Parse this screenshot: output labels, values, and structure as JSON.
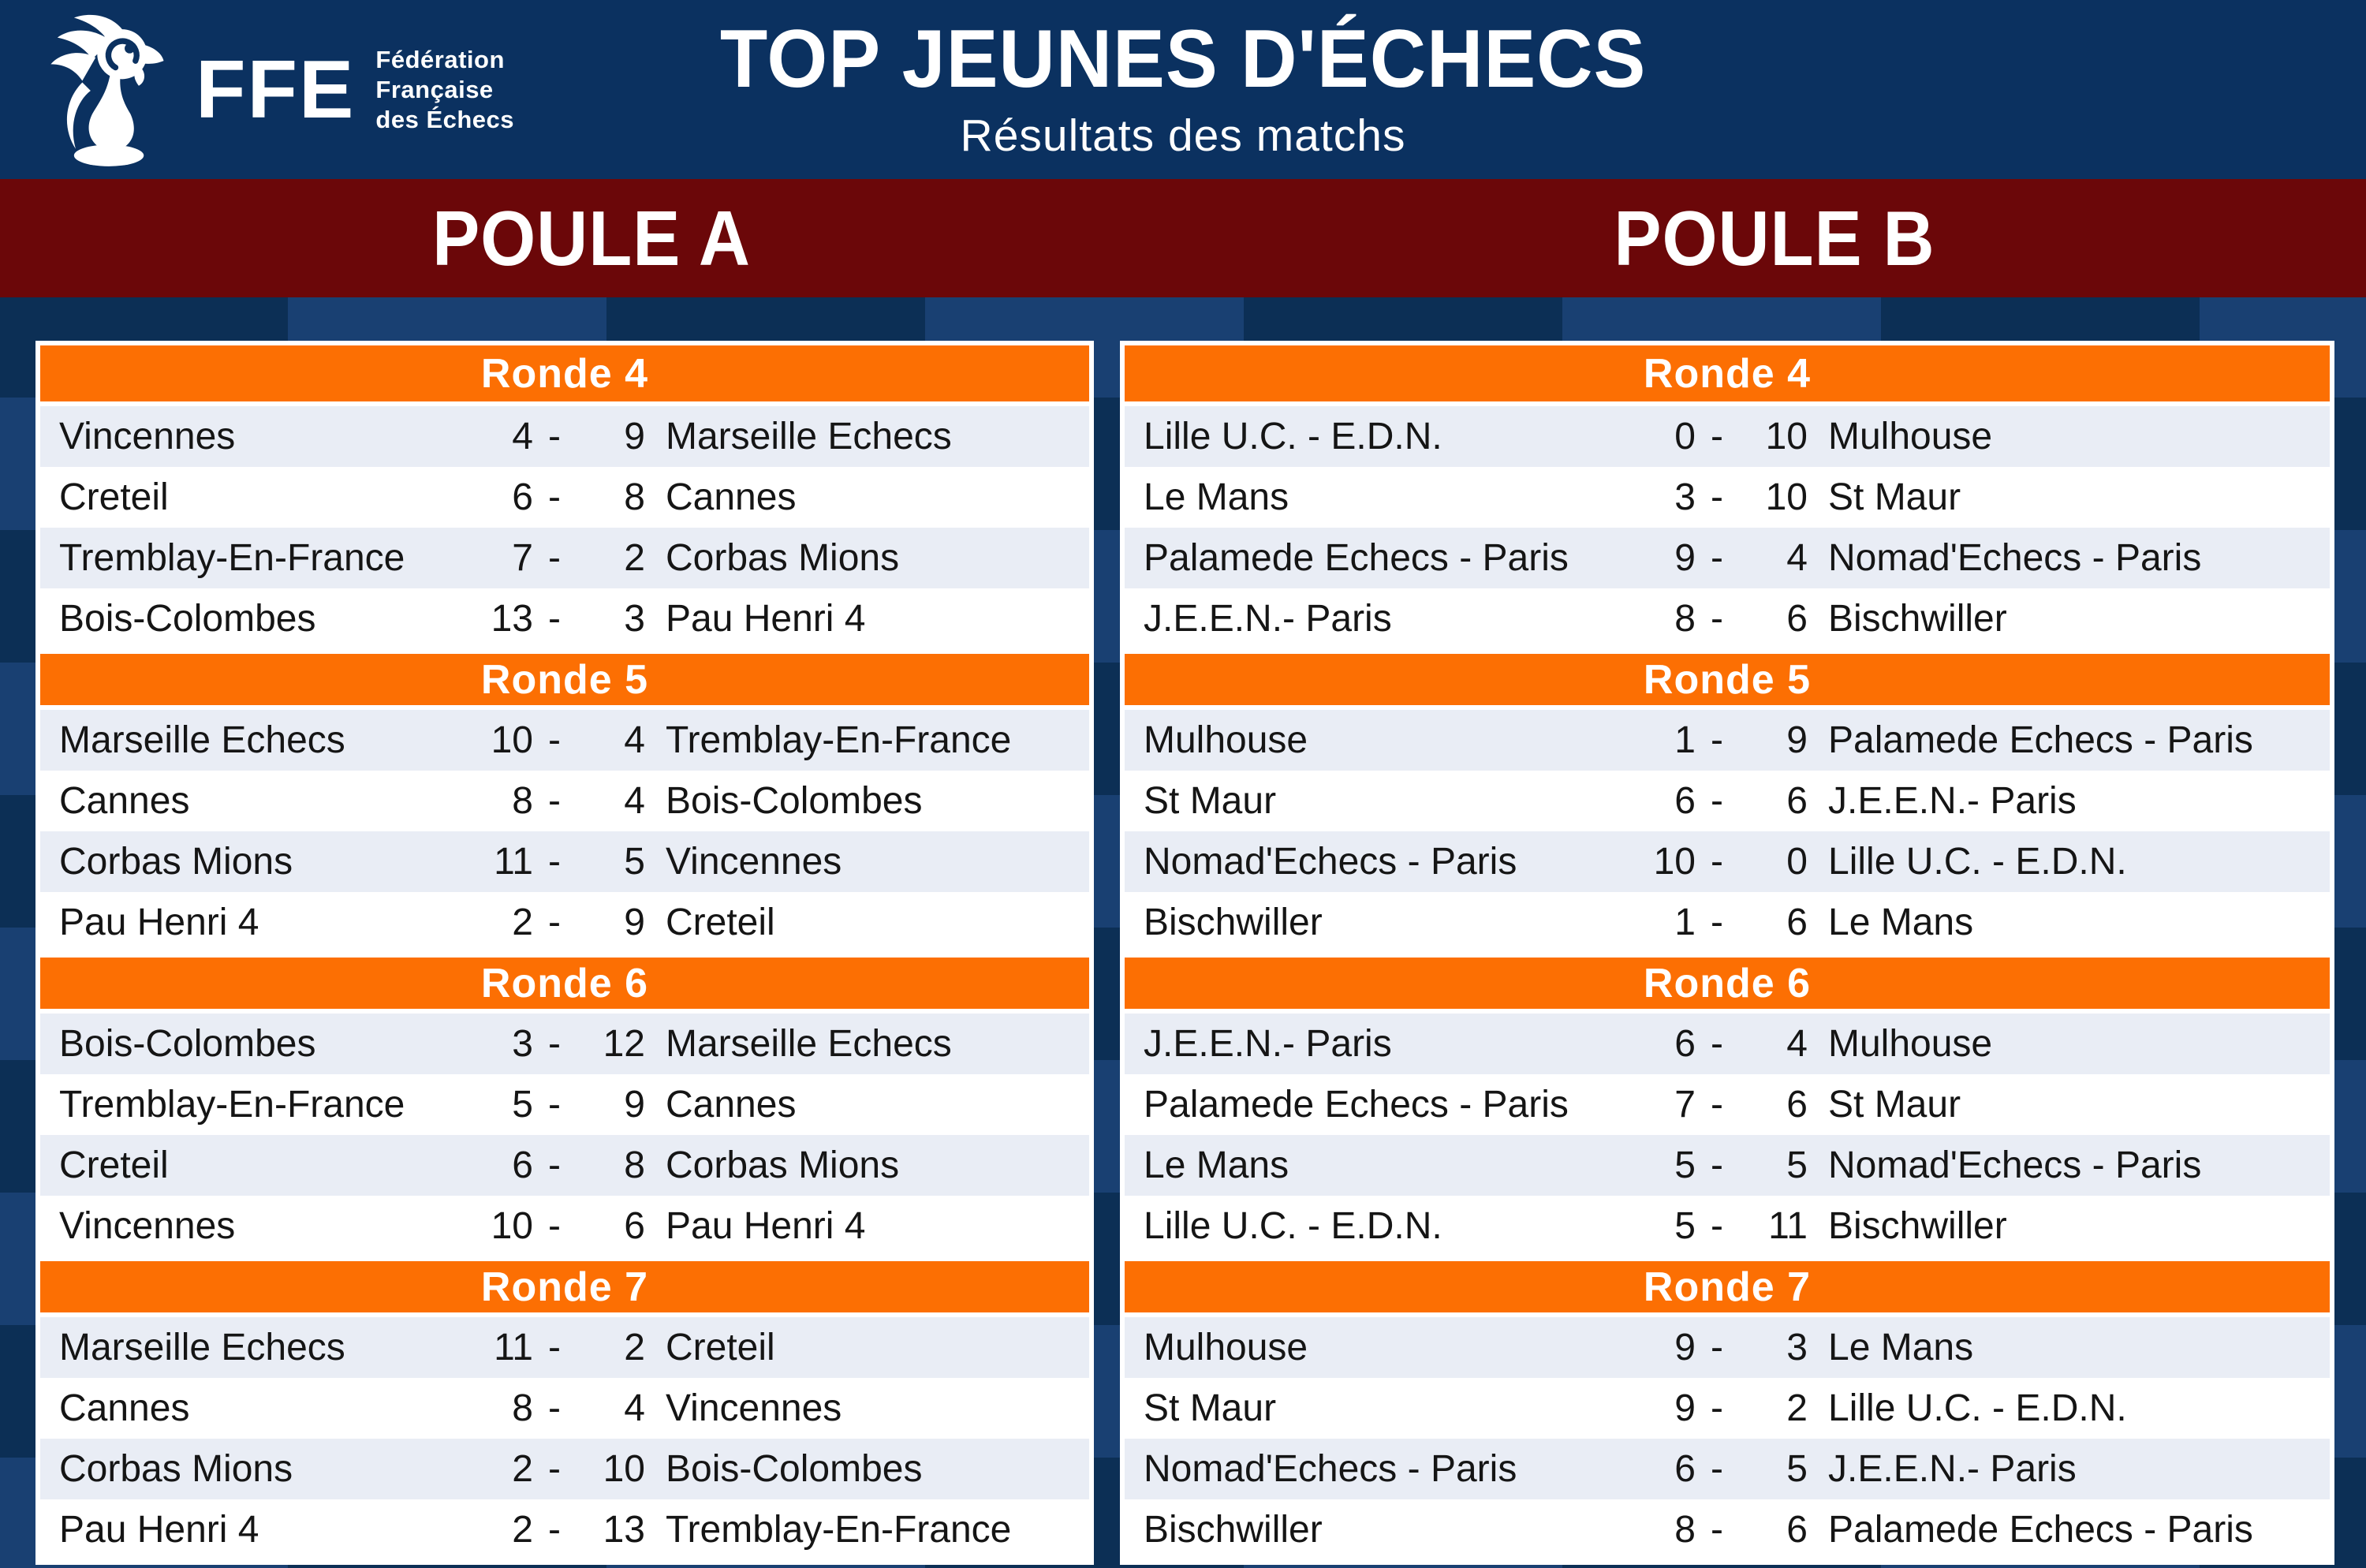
{
  "colors": {
    "header_navy": "#0b3160",
    "background_navy": "#0c2f55",
    "band_red": "#6b0709",
    "accent_orange": "#fc6f03",
    "row_alt_blue": "#e9edf5",
    "white": "#ffffff",
    "row_text": "#151515"
  },
  "header": {
    "logo": {
      "acronym": "FFE",
      "org_lines": [
        "Fédération",
        "Française",
        "des Échecs"
      ],
      "rooster_icon": "rooster-chess-pawn-icon"
    },
    "title": "TOP JEUNES D'ÉCHECS",
    "subtitle": "Résultats des matchs"
  },
  "score_separator": "-",
  "pools": [
    {
      "name": "POULE A",
      "rounds": [
        {
          "label": "Ronde 4",
          "matches": [
            {
              "home": "Vincennes",
              "home_score": "4",
              "away_score": "9",
              "away": "Marseille Echecs"
            },
            {
              "home": "Creteil",
              "home_score": "6",
              "away_score": "8",
              "away": "Cannes"
            },
            {
              "home": "Tremblay-En-France",
              "home_score": "7",
              "away_score": "2",
              "away": "Corbas Mions"
            },
            {
              "home": "Bois-Colombes",
              "home_score": "13",
              "away_score": "3",
              "away": "Pau Henri 4"
            }
          ]
        },
        {
          "label": "Ronde 5",
          "matches": [
            {
              "home": "Marseille Echecs",
              "home_score": "10",
              "away_score": "4",
              "away": "Tremblay-En-France"
            },
            {
              "home": "Cannes",
              "home_score": "8",
              "away_score": "4",
              "away": "Bois-Colombes"
            },
            {
              "home": "Corbas Mions",
              "home_score": "11",
              "away_score": "5",
              "away": "Vincennes"
            },
            {
              "home": "Pau Henri 4",
              "home_score": "2",
              "away_score": "9",
              "away": "Creteil"
            }
          ]
        },
        {
          "label": "Ronde 6",
          "matches": [
            {
              "home": "Bois-Colombes",
              "home_score": "3",
              "away_score": "12",
              "away": "Marseille Echecs"
            },
            {
              "home": "Tremblay-En-France",
              "home_score": "5",
              "away_score": "9",
              "away": "Cannes"
            },
            {
              "home": "Creteil",
              "home_score": "6",
              "away_score": "8",
              "away": "Corbas Mions"
            },
            {
              "home": "Vincennes",
              "home_score": "10",
              "away_score": "6",
              "away": "Pau Henri 4"
            }
          ]
        },
        {
          "label": "Ronde 7",
          "matches": [
            {
              "home": "Marseille Echecs",
              "home_score": "11",
              "away_score": "2",
              "away": "Creteil"
            },
            {
              "home": "Cannes",
              "home_score": "8",
              "away_score": "4",
              "away": "Vincennes"
            },
            {
              "home": "Corbas Mions",
              "home_score": "2",
              "away_score": "10",
              "away": "Bois-Colombes"
            },
            {
              "home": "Pau Henri 4",
              "home_score": "2",
              "away_score": "13",
              "away": "Tremblay-En-France"
            }
          ]
        }
      ]
    },
    {
      "name": "POULE B",
      "rounds": [
        {
          "label": "Ronde 4",
          "matches": [
            {
              "home": "Lille U.C. - E.D.N.",
              "home_score": "0",
              "away_score": "10",
              "away": "Mulhouse"
            },
            {
              "home": "Le Mans",
              "home_score": "3",
              "away_score": "10",
              "away": "St Maur"
            },
            {
              "home": "Palamede Echecs - Paris",
              "home_score": "9",
              "away_score": "4",
              "away": "Nomad'Echecs - Paris"
            },
            {
              "home": "J.E.E.N.- Paris",
              "home_score": "8",
              "away_score": "6",
              "away": "Bischwiller"
            }
          ]
        },
        {
          "label": "Ronde 5",
          "matches": [
            {
              "home": "Mulhouse",
              "home_score": "1",
              "away_score": "9",
              "away": "Palamede Echecs - Paris"
            },
            {
              "home": "St Maur",
              "home_score": "6",
              "away_score": "6",
              "away": "J.E.E.N.- Paris"
            },
            {
              "home": "Nomad'Echecs - Paris",
              "home_score": "10",
              "away_score": "0",
              "away": "Lille U.C. - E.D.N."
            },
            {
              "home": "Bischwiller",
              "home_score": "1",
              "away_score": "6",
              "away": "Le Mans"
            }
          ]
        },
        {
          "label": "Ronde 6",
          "matches": [
            {
              "home": "J.E.E.N.- Paris",
              "home_score": "6",
              "away_score": "4",
              "away": "Mulhouse"
            },
            {
              "home": "Palamede Echecs - Paris",
              "home_score": "7",
              "away_score": "6",
              "away": "St Maur"
            },
            {
              "home": "Le Mans",
              "home_score": "5",
              "away_score": "5",
              "away": "Nomad'Echecs - Paris"
            },
            {
              "home": "Lille U.C. - E.D.N.",
              "home_score": "5",
              "away_score": "11",
              "away": "Bischwiller"
            }
          ]
        },
        {
          "label": "Ronde 7",
          "matches": [
            {
              "home": "Mulhouse",
              "home_score": "9",
              "away_score": "3",
              "away": "Le Mans"
            },
            {
              "home": "St Maur",
              "home_score": "9",
              "away_score": "2",
              "away": "Lille U.C. - E.D.N."
            },
            {
              "home": "Nomad'Echecs - Paris",
              "home_score": "6",
              "away_score": "5",
              "away": "J.E.E.N.- Paris"
            },
            {
              "home": "Bischwiller",
              "home_score": "8",
              "away_score": "6",
              "away": "Palamede Echecs - Paris"
            }
          ]
        }
      ]
    }
  ]
}
